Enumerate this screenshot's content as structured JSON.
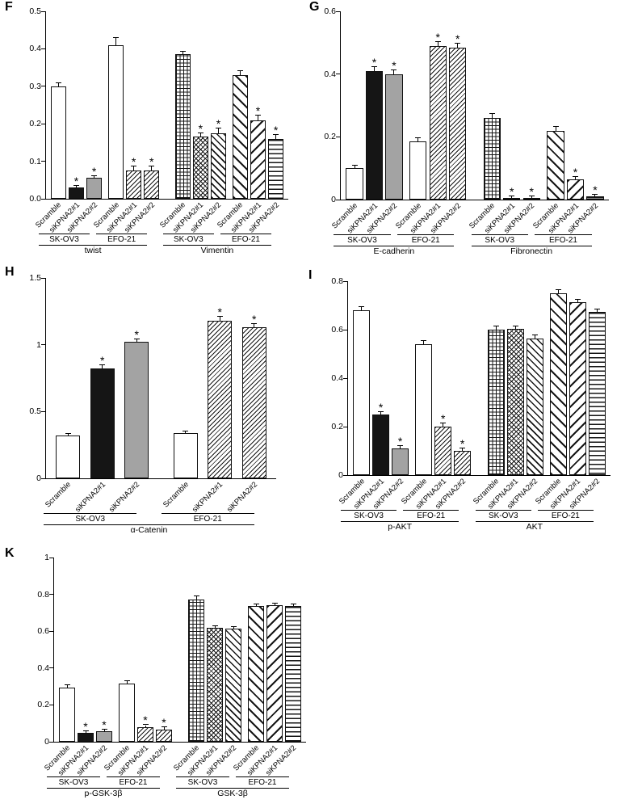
{
  "sig_symbol": "*",
  "chart_data": [
    {
      "panel": "F",
      "type": "bar",
      "ylabel": "",
      "ylim": [
        0,
        0.5
      ],
      "yticks": [
        {
          "value": 0.5,
          "label": "0.5"
        },
        {
          "value": 0.4,
          "label": "0.4"
        },
        {
          "value": 0.3,
          "label": "0.3"
        },
        {
          "value": 0.2,
          "label": "0.2"
        },
        {
          "value": 0.1,
          "label": "0.1"
        },
        {
          "value": 0,
          "label": "0.0"
        }
      ],
      "bars": [
        {
          "label": "Scramble",
          "value": 0.3,
          "err": 0.008,
          "sig": false,
          "pattern": "open"
        },
        {
          "label": "siKPNA2#1",
          "value": 0.03,
          "err": 0.005,
          "sig": true,
          "pattern": "solid"
        },
        {
          "label": "siKPNA2#2",
          "value": 0.055,
          "err": 0.006,
          "sig": true,
          "pattern": "gray"
        },
        {
          "label": "Scramble",
          "value": 0.41,
          "err": 0.018,
          "sig": false,
          "pattern": "open"
        },
        {
          "label": "siKPNA2#1",
          "value": 0.075,
          "err": 0.012,
          "sig": true,
          "pattern": "hatch-fine"
        },
        {
          "label": "siKPNA2#2",
          "value": 0.075,
          "err": 0.012,
          "sig": true,
          "pattern": "hatch-fine"
        },
        {
          "label": "Scramble",
          "value": 0.385,
          "err": 0.008,
          "sig": false,
          "pattern": "grid"
        },
        {
          "label": "siKPNA2#1",
          "value": 0.165,
          "err": 0.01,
          "sig": true,
          "pattern": "crosshatch"
        },
        {
          "label": "siKPNA2#2",
          "value": 0.175,
          "err": 0.012,
          "sig": true,
          "pattern": "diag-left"
        },
        {
          "label": "Scramble",
          "value": 0.33,
          "err": 0.01,
          "sig": false,
          "pattern": "diag-left-wide"
        },
        {
          "label": "siKPNA2#1",
          "value": 0.21,
          "err": 0.012,
          "sig": true,
          "pattern": "diag-right-wide"
        },
        {
          "label": "siKPNA2#2",
          "value": 0.16,
          "err": 0.01,
          "sig": true,
          "pattern": "hlines"
        }
      ],
      "cell_line_groups": [
        {
          "label": "SK-OV3",
          "from": 0,
          "to": 2
        },
        {
          "label": "EFO-21",
          "from": 3,
          "to": 5
        },
        {
          "label": "SK-OV3",
          "from": 6,
          "to": 8
        },
        {
          "label": "EFO-21",
          "from": 9,
          "to": 11
        }
      ],
      "protein_groups": [
        {
          "label": "twist",
          "from": 0,
          "to": 5
        },
        {
          "label": "Vimentin",
          "from": 6,
          "to": 11
        }
      ]
    },
    {
      "panel": "G",
      "type": "bar",
      "ylabel": "",
      "ylim": [
        0,
        0.6
      ],
      "yticks": [
        {
          "value": 0.6,
          "label": "0.6"
        },
        {
          "value": 0.4,
          "label": "0.4"
        },
        {
          "value": 0.2,
          "label": "0.2"
        },
        {
          "value": 0,
          "label": "0"
        }
      ],
      "bars": [
        {
          "label": "Scramble",
          "value": 0.1,
          "err": 0.008,
          "sig": false,
          "pattern": "open"
        },
        {
          "label": "siKPNA2#1",
          "value": 0.41,
          "err": 0.012,
          "sig": true,
          "pattern": "solid"
        },
        {
          "label": "siKPNA2#2",
          "value": 0.4,
          "err": 0.012,
          "sig": true,
          "pattern": "gray"
        },
        {
          "label": "Scramble",
          "value": 0.185,
          "err": 0.01,
          "sig": false,
          "pattern": "open"
        },
        {
          "label": "siKPNA2#1",
          "value": 0.49,
          "err": 0.012,
          "sig": true,
          "pattern": "hatch-fine"
        },
        {
          "label": "siKPNA2#2",
          "value": 0.485,
          "err": 0.012,
          "sig": true,
          "pattern": "hatch-fine"
        },
        {
          "label": "Scramble",
          "value": 0.26,
          "err": 0.012,
          "sig": false,
          "pattern": "grid"
        },
        {
          "label": "siKPNA2#1",
          "value": 0.005,
          "err": 0.003,
          "sig": true,
          "pattern": "crosshatch"
        },
        {
          "label": "siKPNA2#2",
          "value": 0.005,
          "err": 0.003,
          "sig": true,
          "pattern": "diag-left"
        },
        {
          "label": "Scramble",
          "value": 0.22,
          "err": 0.012,
          "sig": false,
          "pattern": "diag-left-wide"
        },
        {
          "label": "siKPNA2#1",
          "value": 0.065,
          "err": 0.008,
          "sig": true,
          "pattern": "diag-right-wide"
        },
        {
          "label": "siKPNA2#2",
          "value": 0.01,
          "err": 0.004,
          "sig": true,
          "pattern": "hlines"
        }
      ],
      "cell_line_groups": [
        {
          "label": "SK-OV3",
          "from": 0,
          "to": 2
        },
        {
          "label": "EFO-21",
          "from": 3,
          "to": 5
        },
        {
          "label": "SK-OV3",
          "from": 6,
          "to": 8
        },
        {
          "label": "EFO-21",
          "from": 9,
          "to": 11
        }
      ],
      "protein_groups": [
        {
          "label": "E-cadherin",
          "from": 0,
          "to": 5
        },
        {
          "label": "Fibronectin",
          "from": 6,
          "to": 11
        }
      ]
    },
    {
      "panel": "H",
      "type": "bar",
      "ylabel": "",
      "ylim": [
        0,
        1.5
      ],
      "yticks": [
        {
          "value": 1.5,
          "label": "1.5"
        },
        {
          "value": 1,
          "label": "1"
        },
        {
          "value": 0.5,
          "label": "0.5"
        },
        {
          "value": 0,
          "label": "0"
        }
      ],
      "bars": [
        {
          "label": "Scramble",
          "value": 0.32,
          "err": 0.01,
          "sig": false,
          "pattern": "open"
        },
        {
          "label": "siKPNA2#1",
          "value": 0.82,
          "err": 0.025,
          "sig": true,
          "pattern": "solid"
        },
        {
          "label": "siKPNA2#2",
          "value": 1.02,
          "err": 0.02,
          "sig": true,
          "pattern": "gray"
        },
        {
          "label": "Scramble",
          "value": 0.34,
          "err": 0.012,
          "sig": false,
          "pattern": "open"
        },
        {
          "label": "siKPNA2#1",
          "value": 1.18,
          "err": 0.03,
          "sig": true,
          "pattern": "hatch-fine"
        },
        {
          "label": "siKPNA2#2",
          "value": 1.13,
          "err": 0.025,
          "sig": true,
          "pattern": "hatch-fine"
        }
      ],
      "cell_line_groups": [
        {
          "label": "SK-OV3",
          "from": 0,
          "to": 2
        },
        {
          "label": "EFO-21",
          "from": 3,
          "to": 5
        }
      ],
      "protein_groups": [
        {
          "label": "α-Catenin",
          "from": 0,
          "to": 5
        }
      ]
    },
    {
      "panel": "I",
      "type": "bar",
      "ylabel": "",
      "ylim": [
        0,
        0.8
      ],
      "yticks": [
        {
          "value": 0.8,
          "label": "0.8"
        },
        {
          "value": 0.6,
          "label": "0.6"
        },
        {
          "value": 0.4,
          "label": "0.4"
        },
        {
          "value": 0.2,
          "label": "0.2"
        },
        {
          "value": 0,
          "label": "0"
        }
      ],
      "bars": [
        {
          "label": "Scramble",
          "value": 0.68,
          "err": 0.012,
          "sig": false,
          "pattern": "open"
        },
        {
          "label": "siKPNA2#1",
          "value": 0.25,
          "err": 0.01,
          "sig": true,
          "pattern": "solid"
        },
        {
          "label": "siKPNA2#2",
          "value": 0.11,
          "err": 0.01,
          "sig": true,
          "pattern": "gray"
        },
        {
          "label": "Scramble",
          "value": 0.54,
          "err": 0.015,
          "sig": false,
          "pattern": "open"
        },
        {
          "label": "siKPNA2#1",
          "value": 0.2,
          "err": 0.012,
          "sig": true,
          "pattern": "hatch-fine"
        },
        {
          "label": "siKPNA2#2",
          "value": 0.1,
          "err": 0.01,
          "sig": true,
          "pattern": "hatch-fine"
        },
        {
          "label": "Scramble",
          "value": 0.6,
          "err": 0.012,
          "sig": false,
          "pattern": "grid"
        },
        {
          "label": "siKPNA2#1",
          "value": 0.605,
          "err": 0.01,
          "sig": false,
          "pattern": "crosshatch"
        },
        {
          "label": "siKPNA2#2",
          "value": 0.565,
          "err": 0.012,
          "sig": false,
          "pattern": "diag-left"
        },
        {
          "label": "Scramble",
          "value": 0.75,
          "err": 0.012,
          "sig": false,
          "pattern": "diag-left-wide"
        },
        {
          "label": "siKPNA2#1",
          "value": 0.715,
          "err": 0.01,
          "sig": false,
          "pattern": "diag-right-wide"
        },
        {
          "label": "siKPNA2#2",
          "value": 0.675,
          "err": 0.01,
          "sig": false,
          "pattern": "hlines"
        }
      ],
      "cell_line_groups": [
        {
          "label": "SK-OV3",
          "from": 0,
          "to": 2
        },
        {
          "label": "EFO-21",
          "from": 3,
          "to": 5
        },
        {
          "label": "SK-OV3",
          "from": 6,
          "to": 8
        },
        {
          "label": "EFO-21",
          "from": 9,
          "to": 11
        }
      ],
      "protein_groups": [
        {
          "label": "p-AKT",
          "from": 0,
          "to": 5
        },
        {
          "label": "AKT",
          "from": 6,
          "to": 11
        }
      ]
    },
    {
      "panel": "K",
      "type": "bar",
      "ylabel": "",
      "ylim": [
        0,
        1
      ],
      "yticks": [
        {
          "value": 1,
          "label": "1"
        },
        {
          "value": 0.8,
          "label": "0.8"
        },
        {
          "value": 0.6,
          "label": "0.6"
        },
        {
          "value": 0.4,
          "label": "0.4"
        },
        {
          "value": 0.2,
          "label": "0.2"
        },
        {
          "value": 0,
          "label": "0"
        }
      ],
      "bars": [
        {
          "label": "Scramble",
          "value": 0.295,
          "err": 0.012,
          "sig": false,
          "pattern": "open"
        },
        {
          "label": "siKPNA2#1",
          "value": 0.05,
          "err": 0.006,
          "sig": true,
          "pattern": "solid"
        },
        {
          "label": "siKPNA2#2",
          "value": 0.055,
          "err": 0.008,
          "sig": true,
          "pattern": "gray"
        },
        {
          "label": "Scramble",
          "value": 0.315,
          "err": 0.015,
          "sig": false,
          "pattern": "open"
        },
        {
          "label": "siKPNA2#1",
          "value": 0.08,
          "err": 0.01,
          "sig": true,
          "pattern": "hatch-fine"
        },
        {
          "label": "siKPNA2#2",
          "value": 0.065,
          "err": 0.012,
          "sig": true,
          "pattern": "hatch-fine"
        },
        {
          "label": "Scramble",
          "value": 0.77,
          "err": 0.02,
          "sig": false,
          "pattern": "grid"
        },
        {
          "label": "siKPNA2#1",
          "value": 0.62,
          "err": 0.008,
          "sig": false,
          "pattern": "crosshatch"
        },
        {
          "label": "siKPNA2#2",
          "value": 0.615,
          "err": 0.008,
          "sig": false,
          "pattern": "diag-left"
        },
        {
          "label": "Scramble",
          "value": 0.735,
          "err": 0.008,
          "sig": false,
          "pattern": "diag-left-wide"
        },
        {
          "label": "siKPNA2#1",
          "value": 0.74,
          "err": 0.008,
          "sig": false,
          "pattern": "diag-right-wide"
        },
        {
          "label": "siKPNA2#2",
          "value": 0.735,
          "err": 0.008,
          "sig": false,
          "pattern": "hlines"
        }
      ],
      "cell_line_groups": [
        {
          "label": "SK-OV3",
          "from": 0,
          "to": 2
        },
        {
          "label": "EFO-21",
          "from": 3,
          "to": 5
        },
        {
          "label": "SK-OV3",
          "from": 6,
          "to": 8
        },
        {
          "label": "EFO-21",
          "from": 9,
          "to": 11
        }
      ],
      "protein_groups": [
        {
          "label": "p-GSK-3β",
          "from": 0,
          "to": 5
        },
        {
          "label": "GSK-3β",
          "from": 6,
          "to": 11
        }
      ]
    }
  ]
}
